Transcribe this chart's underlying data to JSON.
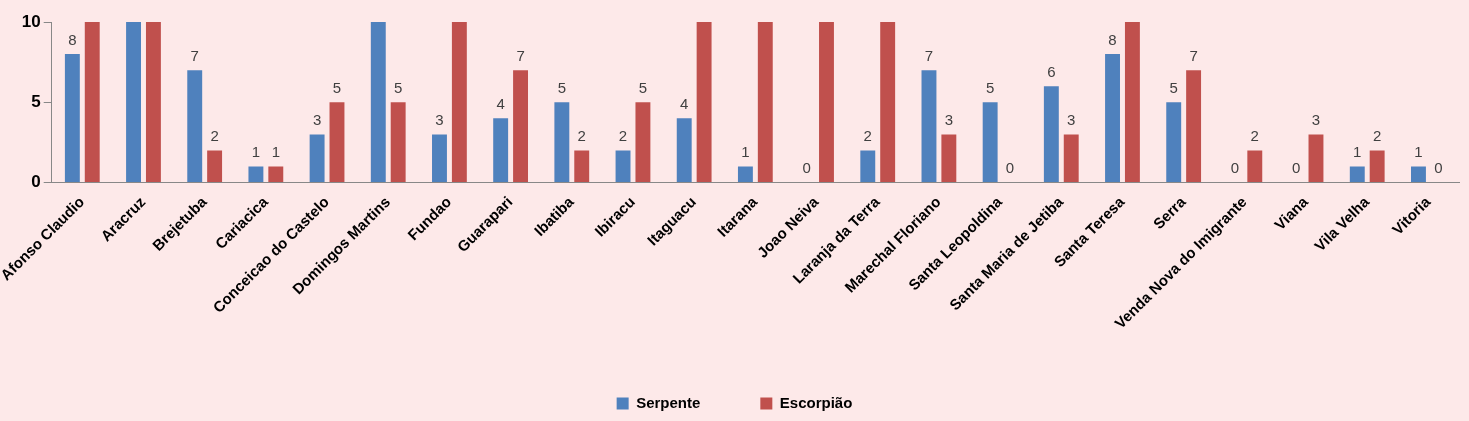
{
  "chart_data": {
    "type": "bar",
    "categories": [
      "Afonso Claudio",
      "Aracruz",
      "Brejetuba",
      "Cariacica",
      "Conceicao do Castelo",
      "Domingos Martins",
      "Fundao",
      "Guarapari",
      "Ibatiba",
      "Ibiracu",
      "Itaguacu",
      "Itarana",
      "Joao Neiva",
      "Laranja da Terra",
      "Marechal Floriano",
      "Santa Leopoldina",
      "Santa Maria de Jetiba",
      "Santa Teresa",
      "Serra",
      "Venda Nova do Imigrante",
      "Viana",
      "Vila Velha",
      "Vitoria"
    ],
    "series": [
      {
        "name": "Serpente",
        "color": "#4f81bd",
        "values": [
          8,
          10,
          7,
          1,
          3,
          10,
          3,
          4,
          5,
          2,
          4,
          1,
          0,
          2,
          7,
          5,
          6,
          8,
          5,
          0,
          0,
          1,
          1
        ],
        "value_labels": [
          "8",
          null,
          "7",
          "1",
          "3",
          null,
          "3",
          "4",
          "5",
          "2",
          "4",
          "1",
          "0",
          "2",
          "7",
          "5",
          "6",
          "8",
          "5",
          "0",
          "0",
          "1",
          "1"
        ]
      },
      {
        "name": "Escorpião",
        "color": "#c0504d",
        "values": [
          10,
          10,
          2,
          1,
          5,
          5,
          10,
          7,
          2,
          5,
          10,
          10,
          10,
          10,
          3,
          0,
          3,
          10,
          7,
          2,
          3,
          2,
          0
        ],
        "value_labels": [
          null,
          null,
          "2",
          "1",
          "5",
          "5",
          null,
          "7",
          "2",
          "5",
          null,
          null,
          null,
          null,
          "3",
          "0",
          "3",
          null,
          "7",
          "2",
          "3",
          "2",
          "0"
        ]
      }
    ],
    "ylim": [
      0,
      10
    ],
    "yticks": [
      0,
      5,
      10
    ],
    "grid": false,
    "legend": "bottom"
  }
}
